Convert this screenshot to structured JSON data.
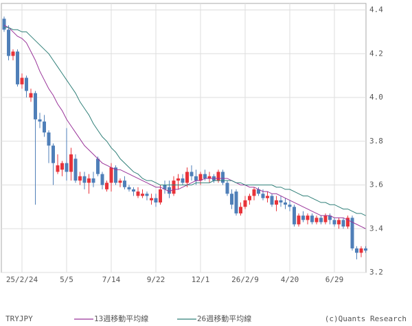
{
  "chart_data": {
    "type": "candlestick",
    "symbol": "TRYJPY",
    "source": "(c)Quants Research",
    "up_color": "#e8333a",
    "down_color": "#4f7fb8",
    "categories": [
      null,
      null,
      null,
      null,
      "25/2/24",
      null,
      null,
      null,
      null,
      null,
      null,
      null,
      null,
      null,
      "5/5",
      null,
      null,
      null,
      null,
      null,
      null,
      null,
      null,
      null,
      "7/14",
      null,
      null,
      null,
      null,
      null,
      null,
      null,
      null,
      null,
      "9/22",
      null,
      null,
      null,
      null,
      null,
      null,
      null,
      null,
      null,
      "12/1",
      null,
      null,
      null,
      null,
      null,
      null,
      null,
      null,
      null,
      "26/2/9",
      null,
      null,
      null,
      null,
      null,
      null,
      null,
      null,
      null,
      "4/20",
      null,
      null,
      null,
      null,
      null,
      null,
      null,
      null,
      null,
      "6/29",
      null,
      null,
      null,
      null,
      null,
      null,
      null
    ],
    "open": [
      4.36,
      4.31,
      4.19,
      4.21,
      4.06,
      4.09,
      4.0,
      4.02,
      3.9,
      3.89,
      3.84,
      3.78,
      3.66,
      3.67,
      3.7,
      3.66,
      3.72,
      3.62,
      3.64,
      3.61,
      3.63,
      3.72,
      3.65,
      3.58,
      3.61,
      3.68,
      3.61,
      3.62,
      3.59,
      3.58,
      3.55,
      3.55,
      3.56,
      3.53,
      3.54,
      3.52,
      3.6,
      3.59,
      3.56,
      3.62,
      3.63,
      3.61,
      3.66,
      3.64,
      3.62,
      3.65,
      3.63,
      3.64,
      3.62,
      3.66,
      3.61,
      3.56,
      3.57,
      3.47,
      3.5,
      3.53,
      3.55,
      3.58,
      3.56,
      3.54,
      3.55,
      3.51,
      3.53,
      3.52,
      3.51,
      3.5,
      3.42,
      3.46,
      3.44,
      3.46,
      3.43,
      3.45,
      3.43,
      3.46,
      3.44,
      3.42,
      3.44,
      3.41,
      3.45,
      3.31,
      3.29,
      3.31
    ],
    "high": [
      4.37,
      4.33,
      4.22,
      4.22,
      4.11,
      4.1,
      4.04,
      4.03,
      3.93,
      3.92,
      3.85,
      3.79,
      3.74,
      3.71,
      3.86,
      3.77,
      3.74,
      3.66,
      3.66,
      3.65,
      3.66,
      3.73,
      3.66,
      3.62,
      3.7,
      3.69,
      3.63,
      3.64,
      3.6,
      3.59,
      3.59,
      3.58,
      3.57,
      3.56,
      3.56,
      3.6,
      3.62,
      3.62,
      3.64,
      3.65,
      3.65,
      3.68,
      3.69,
      3.67,
      3.66,
      3.67,
      3.66,
      3.65,
      3.67,
      3.67,
      3.62,
      3.58,
      3.58,
      3.52,
      3.55,
      3.56,
      3.59,
      3.59,
      3.58,
      3.57,
      3.56,
      3.55,
      3.55,
      3.54,
      3.53,
      3.51,
      3.47,
      3.48,
      3.47,
      3.47,
      3.46,
      3.46,
      3.47,
      3.47,
      3.45,
      3.45,
      3.45,
      3.46,
      3.46,
      3.32,
      3.32,
      3.32
    ],
    "low": [
      4.3,
      4.17,
      4.17,
      4.05,
      4.04,
      4.0,
      3.98,
      3.51,
      3.86,
      3.82,
      3.7,
      3.6,
      3.65,
      3.64,
      3.62,
      3.62,
      3.61,
      3.6,
      3.58,
      3.56,
      3.59,
      3.64,
      3.58,
      3.57,
      3.57,
      3.6,
      3.59,
      3.58,
      3.57,
      3.55,
      3.54,
      3.54,
      3.53,
      3.51,
      3.5,
      3.51,
      3.56,
      3.54,
      3.55,
      3.58,
      3.6,
      3.59,
      3.62,
      3.6,
      3.6,
      3.62,
      3.61,
      3.61,
      3.61,
      3.6,
      3.55,
      3.49,
      3.46,
      3.46,
      3.49,
      3.51,
      3.53,
      3.55,
      3.53,
      3.52,
      3.5,
      3.48,
      3.5,
      3.49,
      3.48,
      3.41,
      3.41,
      3.43,
      3.42,
      3.42,
      3.42,
      3.42,
      3.42,
      3.42,
      3.41,
      3.4,
      3.4,
      3.4,
      3.3,
      3.26,
      3.27,
      3.29
    ],
    "close": [
      4.31,
      4.19,
      4.21,
      4.06,
      4.09,
      4.03,
      4.02,
      3.9,
      3.89,
      3.84,
      3.78,
      3.7,
      3.69,
      3.7,
      3.66,
      3.74,
      3.62,
      3.64,
      3.61,
      3.63,
      3.61,
      3.65,
      3.6,
      3.61,
      3.68,
      3.61,
      3.62,
      3.59,
      3.58,
      3.57,
      3.57,
      3.56,
      3.55,
      3.54,
      3.52,
      3.58,
      3.58,
      3.56,
      3.62,
      3.63,
      3.61,
      3.66,
      3.64,
      3.62,
      3.65,
      3.63,
      3.64,
      3.62,
      3.66,
      3.61,
      3.56,
      3.51,
      3.47,
      3.5,
      3.53,
      3.55,
      3.58,
      3.56,
      3.54,
      3.55,
      3.51,
      3.53,
      3.52,
      3.51,
      3.5,
      3.42,
      3.46,
      3.44,
      3.46,
      3.43,
      3.45,
      3.43,
      3.46,
      3.44,
      3.42,
      3.44,
      3.41,
      3.45,
      3.31,
      3.29,
      3.31,
      3.3
    ],
    "series": [
      {
        "name": "13週移動平均線",
        "color": "#993399",
        "values": [
          4.33,
          4.32,
          4.3,
          4.28,
          4.27,
          4.25,
          4.21,
          4.17,
          4.12,
          4.08,
          4.04,
          4.01,
          3.97,
          3.94,
          3.9,
          3.87,
          3.84,
          3.81,
          3.78,
          3.76,
          3.74,
          3.72,
          3.7,
          3.69,
          3.68,
          3.67,
          3.67,
          3.66,
          3.65,
          3.64,
          3.63,
          3.62,
          3.61,
          3.6,
          3.59,
          3.59,
          3.58,
          3.57,
          3.58,
          3.58,
          3.59,
          3.6,
          3.61,
          3.62,
          3.62,
          3.63,
          3.63,
          3.63,
          3.63,
          3.63,
          3.63,
          3.62,
          3.61,
          3.6,
          3.6,
          3.59,
          3.59,
          3.58,
          3.57,
          3.57,
          3.56,
          3.56,
          3.55,
          3.54,
          3.53,
          3.52,
          3.51,
          3.5,
          3.49,
          3.48,
          3.47,
          3.46,
          3.46,
          3.46,
          3.45,
          3.45,
          3.45,
          3.44,
          3.43,
          3.42,
          3.41,
          3.4
        ]
      },
      {
        "name": "26週移動平均線",
        "color": "#2f7f78",
        "values": [
          4.32,
          4.32,
          4.31,
          4.31,
          4.3,
          4.3,
          4.28,
          4.26,
          4.24,
          4.22,
          4.2,
          4.17,
          4.14,
          4.11,
          4.08,
          4.05,
          4.02,
          3.98,
          3.95,
          3.92,
          3.88,
          3.85,
          3.82,
          3.8,
          3.77,
          3.75,
          3.72,
          3.7,
          3.68,
          3.66,
          3.65,
          3.63,
          3.62,
          3.62,
          3.61,
          3.6,
          3.6,
          3.6,
          3.6,
          3.6,
          3.6,
          3.6,
          3.6,
          3.61,
          3.61,
          3.61,
          3.61,
          3.62,
          3.62,
          3.62,
          3.62,
          3.62,
          3.61,
          3.61,
          3.6,
          3.6,
          3.6,
          3.6,
          3.6,
          3.6,
          3.6,
          3.59,
          3.59,
          3.58,
          3.58,
          3.57,
          3.56,
          3.55,
          3.55,
          3.54,
          3.53,
          3.52,
          3.52,
          3.51,
          3.51,
          3.5,
          3.49,
          3.49,
          3.48,
          3.47,
          3.47,
          3.46
        ]
      }
    ],
    "ylim": [
      3.2,
      4.43
    ],
    "yticks": [
      3.2,
      3.4,
      3.6,
      3.8,
      {
        "value": 4,
        "label": "4.0"
      },
      4.2,
      4.4
    ],
    "grid": true
  }
}
